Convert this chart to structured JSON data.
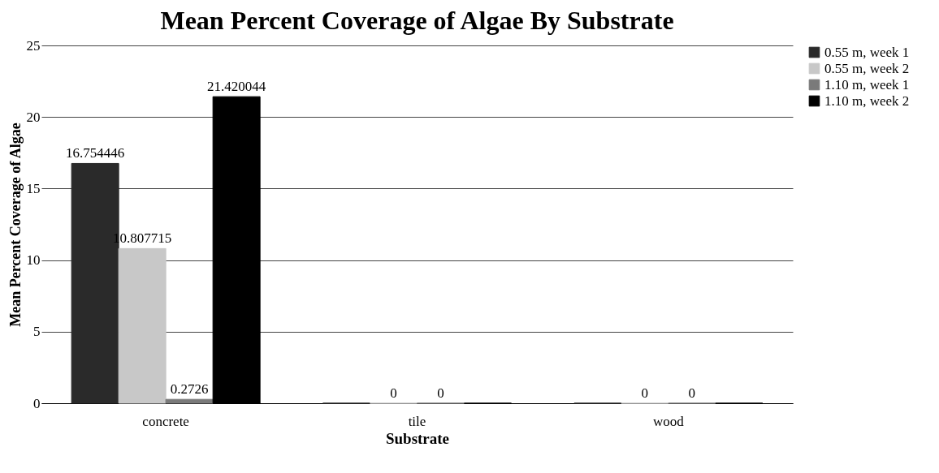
{
  "chart_data": {
    "type": "bar",
    "title": "Mean Percent Coverage of Algae By Substrate",
    "xlabel": "Substrate",
    "ylabel": "Mean Percent Coverage of Algae",
    "categories": [
      "concrete",
      "tile",
      "wood"
    ],
    "series": [
      {
        "name": "0.55 m, week 1",
        "color": "#2a2a2a",
        "values": [
          16.754446,
          0,
          0
        ],
        "value_labels": [
          "16.754446",
          null,
          null
        ]
      },
      {
        "name": "0.55 m, week 2",
        "color": "#c8c8c8",
        "values": [
          10.807715,
          0,
          0
        ],
        "value_labels": [
          "10.807715",
          "0",
          "0"
        ]
      },
      {
        "name": "1.10 m, week 1",
        "color": "#7a7a7a",
        "values": [
          0.2726,
          0,
          0
        ],
        "value_labels": [
          "0.2726",
          "0",
          "0"
        ]
      },
      {
        "name": "1.10 m, week 2",
        "color": "#000000",
        "values": [
          21.420044,
          0,
          0
        ],
        "value_labels": [
          "21.420044",
          null,
          null
        ]
      }
    ],
    "ylim": [
      0,
      25
    ],
    "yticks": [
      0,
      5,
      10,
      15,
      20,
      25
    ],
    "grid": "y",
    "legend": "right"
  }
}
